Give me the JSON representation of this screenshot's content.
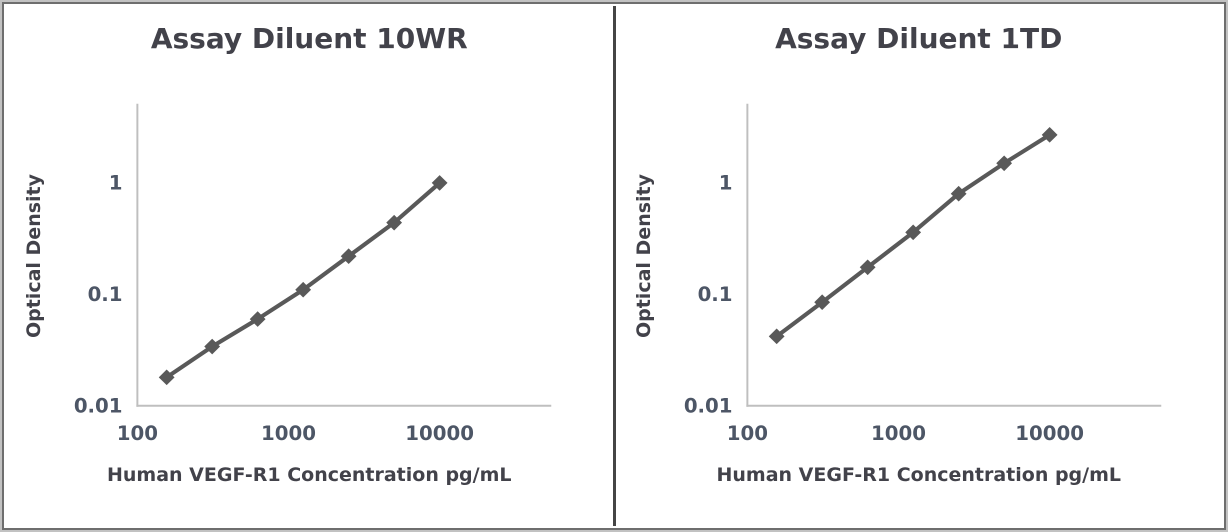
{
  "figure": {
    "outer_border_color": "#c2c2c2",
    "inner_border_color": "#6e6e6e",
    "divider_color": "#454545",
    "background": "#ffffff",
    "title_text_color": "#42424a",
    "tick_text_color": "#4d5666",
    "axis_line_color": "#bfbfbf"
  },
  "chart_data": [
    {
      "type": "line",
      "title": "Assay Diluent 10WR",
      "xlabel": "Human VEGF-R1 Concentration pg/mL",
      "ylabel": "Optical Density",
      "x_scale": "log",
      "y_scale": "log",
      "x": [
        156.25,
        312.5,
        625,
        1250,
        2500,
        5000,
        10000
      ],
      "y": [
        0.018,
        0.034,
        0.06,
        0.11,
        0.22,
        0.44,
        1.0
      ],
      "x_ticks": [
        100,
        1000,
        10000
      ],
      "x_tick_labels": [
        "100",
        "1000",
        "10000"
      ],
      "y_ticks": [
        1,
        0.1,
        0.01
      ],
      "y_tick_labels": [
        "1",
        "0.1",
        "0.01"
      ],
      "xlim": [
        100,
        50000
      ],
      "ylim": [
        0.01,
        5
      ],
      "grid": false,
      "legend": "none",
      "marker": "diamond",
      "series_color": "#595959"
    },
    {
      "type": "line",
      "title": "Assay Diluent 1TD",
      "xlabel": "Human VEGF-R1 Concentration pg/mL",
      "ylabel": "Optical Density",
      "x_scale": "log",
      "y_scale": "log",
      "x": [
        156.25,
        312.5,
        625,
        1250,
        2500,
        5000,
        10000
      ],
      "y": [
        0.042,
        0.085,
        0.175,
        0.36,
        0.8,
        1.5,
        2.7
      ],
      "x_ticks": [
        100,
        1000,
        10000
      ],
      "x_tick_labels": [
        "100",
        "1000",
        "10000"
      ],
      "y_ticks": [
        1,
        0.1,
        0.01
      ],
      "y_tick_labels": [
        "1",
        "0.1",
        "0.01"
      ],
      "xlim": [
        100,
        50000
      ],
      "ylim": [
        0.01,
        5
      ],
      "grid": false,
      "legend": "none",
      "marker": "diamond",
      "series_color": "#595959"
    }
  ]
}
